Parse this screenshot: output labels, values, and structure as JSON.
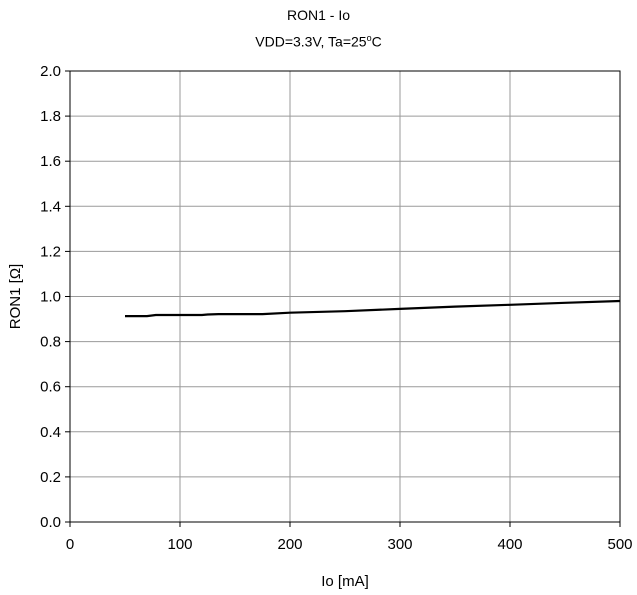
{
  "chart_data": {
    "type": "line",
    "title": "RON1 - Io",
    "subtitle_prefix": "VDD=3.3V, Ta=25",
    "subtitle_sup": "o",
    "subtitle_suffix": "C",
    "xlabel": "Io [mA]",
    "ylabel": "RON1 [Ω]",
    "xlim": [
      0,
      500
    ],
    "ylim": [
      0,
      2.0
    ],
    "xticks": [
      0,
      100,
      200,
      300,
      400,
      500
    ],
    "xtick_labels": [
      "0",
      "100",
      "200",
      "300",
      "400",
      "500"
    ],
    "yticks": [
      0,
      0.2,
      0.4,
      0.6,
      0.8,
      1.0,
      1.2,
      1.4,
      1.6,
      1.8,
      2.0
    ],
    "ytick_labels": [
      "0.0",
      "0.2",
      "0.4",
      "0.6",
      "0.8",
      "1.0",
      "1.2",
      "1.4",
      "1.6",
      "1.8",
      "2.0"
    ],
    "grid": true,
    "line_color": "#000000",
    "series": [
      {
        "x": [
          50,
          70,
          78,
          100,
          120,
          125,
          135,
          150,
          175,
          200,
          250,
          300,
          350,
          400,
          450,
          500
        ],
        "y": [
          0.913,
          0.913,
          0.918,
          0.918,
          0.918,
          0.92,
          0.922,
          0.922,
          0.922,
          0.928,
          0.935,
          0.945,
          0.955,
          0.963,
          0.972,
          0.98
        ]
      }
    ]
  }
}
